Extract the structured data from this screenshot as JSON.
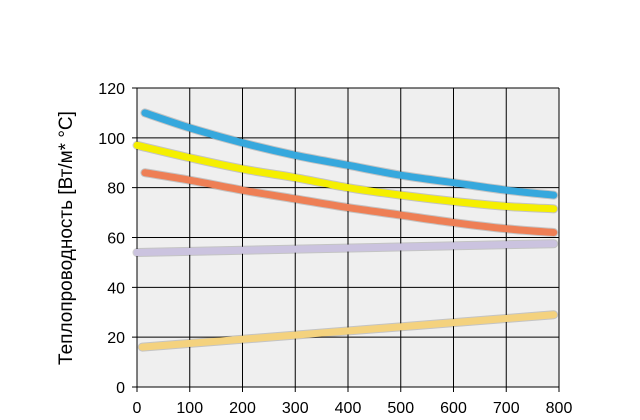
{
  "chart_data": {
    "type": "line",
    "title": "",
    "xlabel": "",
    "ylabel": "Теплопроводность [Вт/м* °С]",
    "xlim": [
      0,
      800
    ],
    "ylim": [
      0,
      120
    ],
    "xticks": [
      "0",
      "100",
      "200",
      "300",
      "400",
      "500",
      "600",
      "700",
      "800"
    ],
    "yticks": [
      "0",
      "20",
      "40",
      "60",
      "80",
      "100",
      "120"
    ],
    "grid": true,
    "background": "#efefef",
    "series": [
      {
        "color": "#36a8dd",
        "x": [
          15,
          100,
          200,
          300,
          400,
          500,
          600,
          700,
          790
        ],
        "y": [
          110,
          104,
          98,
          93,
          89,
          85,
          82,
          79,
          77
        ]
      },
      {
        "color": "#f5ef00",
        "x": [
          0,
          100,
          200,
          300,
          400,
          500,
          600,
          700,
          790
        ],
        "y": [
          97,
          92,
          87.5,
          84,
          80,
          77,
          74.5,
          72.5,
          71.5
        ]
      },
      {
        "color": "#ee7f55",
        "x": [
          15,
          100,
          200,
          300,
          400,
          500,
          600,
          700,
          790
        ],
        "y": [
          86,
          83,
          79,
          75.5,
          72,
          69,
          66,
          63.5,
          62
        ]
      },
      {
        "color": "#cbc3df",
        "x": [
          0,
          790
        ],
        "y": [
          54,
          57.5
        ]
      },
      {
        "color": "#f4d27e",
        "x": [
          10,
          790
        ],
        "y": [
          16,
          29
        ]
      }
    ]
  }
}
